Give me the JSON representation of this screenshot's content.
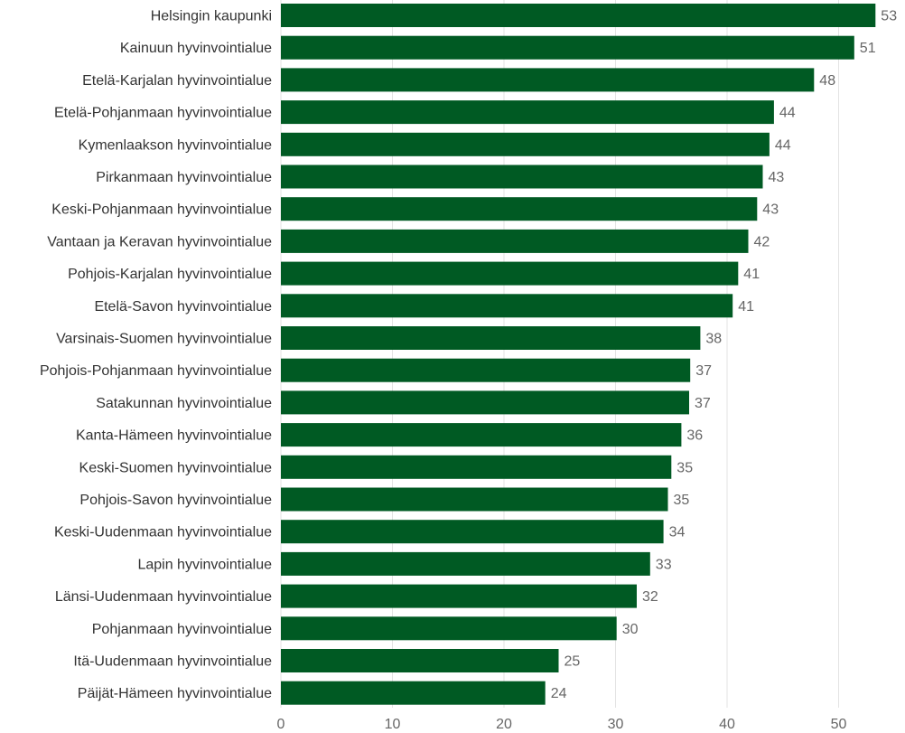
{
  "chart_data": {
    "type": "bar",
    "orientation": "horizontal",
    "title": "",
    "xlabel": "",
    "ylabel": "",
    "categories": [
      "Helsingin kaupunki",
      "Kainuun hyvinvointialue",
      "Etelä-Karjalan hyvinvointialue",
      "Etelä-Pohjanmaan hyvinvointialue",
      "Kymenlaakson hyvinvointialue",
      "Pirkanmaan hyvinvointialue",
      "Keski-Pohjanmaan hyvinvointialue",
      "Vantaan ja Keravan hyvinvointialue",
      "Pohjois-Karjalan hyvinvointialue",
      "Etelä-Savon hyvinvointialue",
      "Varsinais-Suomen hyvinvointialue",
      "Pohjois-Pohjanmaan hyvinvointialue",
      "Satakunnan hyvinvointialue",
      "Kanta-Hämeen hyvinvointialue",
      "Keski-Suomen hyvinvointialue",
      "Pohjois-Savon hyvinvointialue",
      "Keski-Uudenmaan hyvinvointialue",
      "Lapin hyvinvointialue",
      "Länsi-Uudenmaan hyvinvointialue",
      "Pohjanmaan hyvinvointialue",
      "Itä-Uudenmaan hyvinvointialue",
      "Päijät-Hämeen hyvinvointialue"
    ],
    "values": [
      53.3,
      51.4,
      47.8,
      44.2,
      43.8,
      43.2,
      42.7,
      41.9,
      41.0,
      40.5,
      37.6,
      36.7,
      36.6,
      35.9,
      35.0,
      34.7,
      34.3,
      33.1,
      31.9,
      30.1,
      24.9,
      23.7
    ],
    "value_labels": [
      "53",
      "51",
      "48",
      "44",
      "44",
      "43",
      "43",
      "42",
      "41",
      "41",
      "38",
      "37",
      "37",
      "36",
      "35",
      "35",
      "34",
      "33",
      "32",
      "30",
      "25",
      "24"
    ],
    "xlim": [
      0,
      55
    ],
    "x_ticks": [
      0,
      10,
      20,
      30,
      40,
      50
    ],
    "x_tick_labels": [
      "0",
      "10",
      "20",
      "30",
      "40",
      "50"
    ],
    "grid": true,
    "legend": "none",
    "bar_color": "#005a23"
  }
}
